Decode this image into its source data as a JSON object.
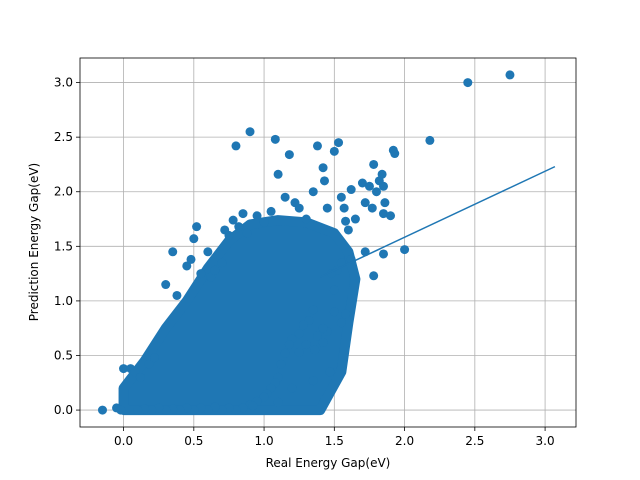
{
  "chart_data": {
    "type": "scatter",
    "title": "",
    "xlabel": "Real Energy Gap(eV)",
    "ylabel": "Prediction Energy Gap(eV)",
    "xlim": [
      -0.31,
      3.22
    ],
    "ylim": [
      -0.155,
      3.225
    ],
    "xticks": [
      "0.0",
      "0.5",
      "1.0",
      "1.5",
      "2.0",
      "2.5",
      "3.0"
    ],
    "yticks": [
      "0.0",
      "0.5",
      "1.0",
      "1.5",
      "2.0",
      "2.5",
      "3.0"
    ],
    "grid": true,
    "color": "#1f77b4",
    "series": [
      {
        "kind": "scatter",
        "points": [
          [
            -0.15,
            0.0
          ],
          [
            -0.05,
            0.02
          ],
          [
            -0.02,
            0.0
          ],
          [
            0.0,
            0.38
          ],
          [
            0.05,
            0.38
          ],
          [
            0.08,
            0.35
          ],
          [
            0.12,
            0.3
          ],
          [
            0.18,
            0.42
          ],
          [
            0.22,
            0.48
          ],
          [
            0.3,
            1.15
          ],
          [
            0.35,
            1.45
          ],
          [
            0.38,
            1.05
          ],
          [
            0.45,
            1.32
          ],
          [
            0.48,
            1.38
          ],
          [
            0.5,
            1.57
          ],
          [
            0.52,
            1.68
          ],
          [
            0.55,
            1.25
          ],
          [
            0.6,
            1.45
          ],
          [
            0.62,
            1.22
          ],
          [
            0.65,
            1.28
          ],
          [
            0.7,
            1.35
          ],
          [
            0.72,
            1.65
          ],
          [
            0.75,
            1.6
          ],
          [
            0.78,
            1.74
          ],
          [
            0.82,
            1.68
          ],
          [
            0.85,
            1.8
          ],
          [
            0.88,
            1.62
          ],
          [
            0.9,
            2.55
          ],
          [
            0.8,
            2.42
          ],
          [
            0.95,
            1.78
          ],
          [
            1.0,
            1.72
          ],
          [
            1.05,
            1.82
          ],
          [
            1.08,
            2.48
          ],
          [
            1.1,
            2.16
          ],
          [
            1.15,
            1.95
          ],
          [
            1.18,
            2.34
          ],
          [
            1.22,
            1.9
          ],
          [
            1.25,
            1.85
          ],
          [
            1.3,
            1.75
          ],
          [
            1.35,
            2.0
          ],
          [
            1.38,
            2.42
          ],
          [
            1.42,
            2.22
          ],
          [
            1.43,
            2.1
          ],
          [
            1.45,
            1.85
          ],
          [
            1.5,
            2.37
          ],
          [
            1.53,
            2.45
          ],
          [
            1.55,
            1.95
          ],
          [
            1.57,
            1.85
          ],
          [
            1.58,
            1.73
          ],
          [
            1.6,
            1.65
          ],
          [
            1.62,
            2.02
          ],
          [
            1.65,
            1.75
          ],
          [
            1.7,
            2.08
          ],
          [
            1.72,
            1.9
          ],
          [
            1.75,
            2.05
          ],
          [
            1.77,
            1.85
          ],
          [
            1.78,
            2.25
          ],
          [
            1.8,
            2.0
          ],
          [
            1.82,
            2.1
          ],
          [
            1.84,
            2.16
          ],
          [
            1.85,
            2.05
          ],
          [
            1.86,
            1.9
          ],
          [
            1.85,
            1.8
          ],
          [
            1.9,
            1.78
          ],
          [
            1.92,
            2.38
          ],
          [
            1.93,
            2.35
          ],
          [
            1.85,
            1.43
          ],
          [
            1.78,
            1.23
          ],
          [
            1.72,
            1.45
          ],
          [
            1.62,
            1.38
          ],
          [
            1.55,
            1.35
          ],
          [
            1.52,
            1.28
          ],
          [
            1.5,
            1.1
          ],
          [
            1.48,
            1.25
          ],
          [
            1.58,
            0.88
          ],
          [
            1.55,
            0.8
          ],
          [
            1.5,
            0.9
          ],
          [
            1.45,
            0.72
          ],
          [
            1.42,
            0.75
          ],
          [
            1.35,
            0.92
          ],
          [
            1.32,
            0.82
          ],
          [
            1.28,
            0.78
          ],
          [
            1.25,
            0.7
          ],
          [
            1.2,
            0.65
          ],
          [
            1.18,
            0.6
          ],
          [
            1.15,
            0.52
          ],
          [
            1.12,
            0.42
          ],
          [
            1.1,
            0.3
          ],
          [
            1.08,
            0.25
          ],
          [
            1.05,
            0.2
          ],
          [
            1.02,
            0.15
          ],
          [
            1.0,
            0.12
          ],
          [
            0.95,
            0.08
          ],
          [
            0.9,
            0.05
          ],
          [
            0.85,
            0.02
          ],
          [
            0.8,
            0.0
          ],
          [
            0.75,
            0.02
          ],
          [
            0.7,
            0.0
          ],
          [
            0.65,
            0.03
          ],
          [
            0.6,
            0.0
          ],
          [
            0.55,
            0.02
          ],
          [
            0.5,
            0.0
          ],
          [
            0.45,
            0.02
          ],
          [
            0.4,
            0.0
          ],
          [
            0.35,
            0.01
          ],
          [
            0.3,
            0.0
          ],
          [
            0.25,
            0.02
          ],
          [
            0.2,
            0.0
          ],
          [
            0.15,
            0.01
          ],
          [
            0.1,
            0.0
          ],
          [
            1.35,
            0.27
          ],
          [
            1.47,
            0.35
          ],
          [
            1.2,
            0.2
          ],
          [
            1.1,
            0.07
          ],
          [
            0.92,
            0.04
          ],
          [
            1.25,
            0.53
          ],
          [
            1.3,
            0.6
          ],
          [
            1.38,
            0.68
          ],
          [
            1.42,
            0.62
          ],
          [
            1.36,
            0.55
          ],
          [
            2.0,
            1.47
          ],
          [
            2.18,
            2.47
          ],
          [
            2.45,
            3.0
          ],
          [
            2.75,
            3.07
          ]
        ]
      }
    ],
    "trend_line": {
      "x": [
        1.4,
        3.07
      ],
      "y": [
        1.22,
        2.23
      ]
    }
  }
}
